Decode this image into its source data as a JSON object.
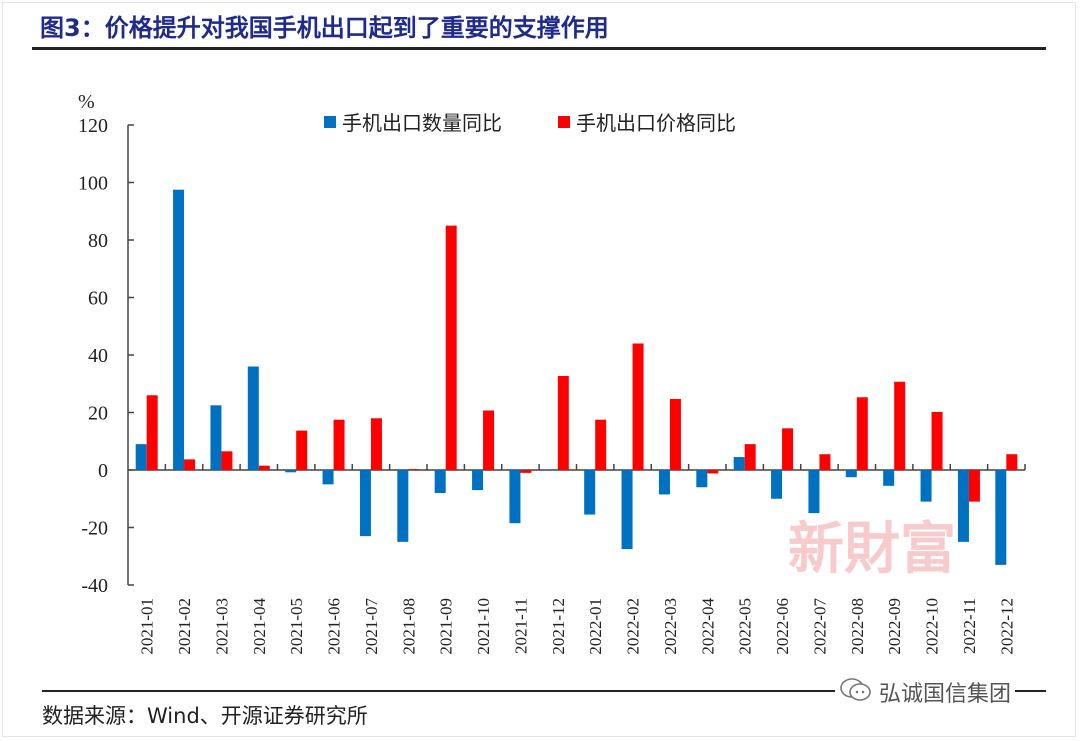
{
  "figure": {
    "title": "图3：价格提升对我国手机出口起到了重要的支撑作用",
    "source": "数据来源：Wind、开源证券研究所",
    "watermark": "新財富",
    "footer_brand": "弘诚国信集团",
    "footer_icon": "wechat-icon"
  },
  "colors": {
    "title": "#1f2a8a",
    "quantity": "#0070c0",
    "price": "#ff0000",
    "watermark": "#f1a6aa"
  },
  "chart_data": {
    "type": "bar",
    "title": "价格提升对我国手机出口起到了重要的支撑作用",
    "ylabel": "%",
    "xlabel": "",
    "ylim": [
      -40,
      120
    ],
    "yticks": [
      -40,
      -20,
      0,
      20,
      40,
      60,
      80,
      100,
      120
    ],
    "grid": false,
    "legend_position": "top-center",
    "categories": [
      "2021-01",
      "2021-02",
      "2021-03",
      "2021-04",
      "2021-05",
      "2021-06",
      "2021-07",
      "2021-08",
      "2021-09",
      "2021-10",
      "2021-11",
      "2021-12",
      "2022-01",
      "2022-02",
      "2022-03",
      "2022-04",
      "2022-05",
      "2022-06",
      "2022-07",
      "2022-08",
      "2022-09",
      "2022-10",
      "2022-11",
      "2022-12"
    ],
    "series": [
      {
        "name": "手机出口数量同比",
        "color": "#0070c0",
        "values": [
          9,
          97.5,
          22.5,
          36,
          -0.8,
          -5,
          -23,
          -25,
          -8,
          -7,
          -18.5,
          0,
          -15.5,
          -27.5,
          -8.5,
          -6,
          4.5,
          -10,
          -15,
          -2.5,
          -5.5,
          -11,
          -25,
          -33
        ]
      },
      {
        "name": "手机出口价格同比",
        "color": "#ff0000",
        "values": [
          26,
          3.7,
          6.5,
          1.5,
          13.7,
          17.5,
          18,
          0.3,
          85,
          20.7,
          -1,
          32.7,
          17.5,
          44,
          24.7,
          -1.2,
          9,
          14.5,
          5.5,
          25.3,
          30.7,
          20.2,
          -11,
          5.5
        ]
      }
    ]
  }
}
